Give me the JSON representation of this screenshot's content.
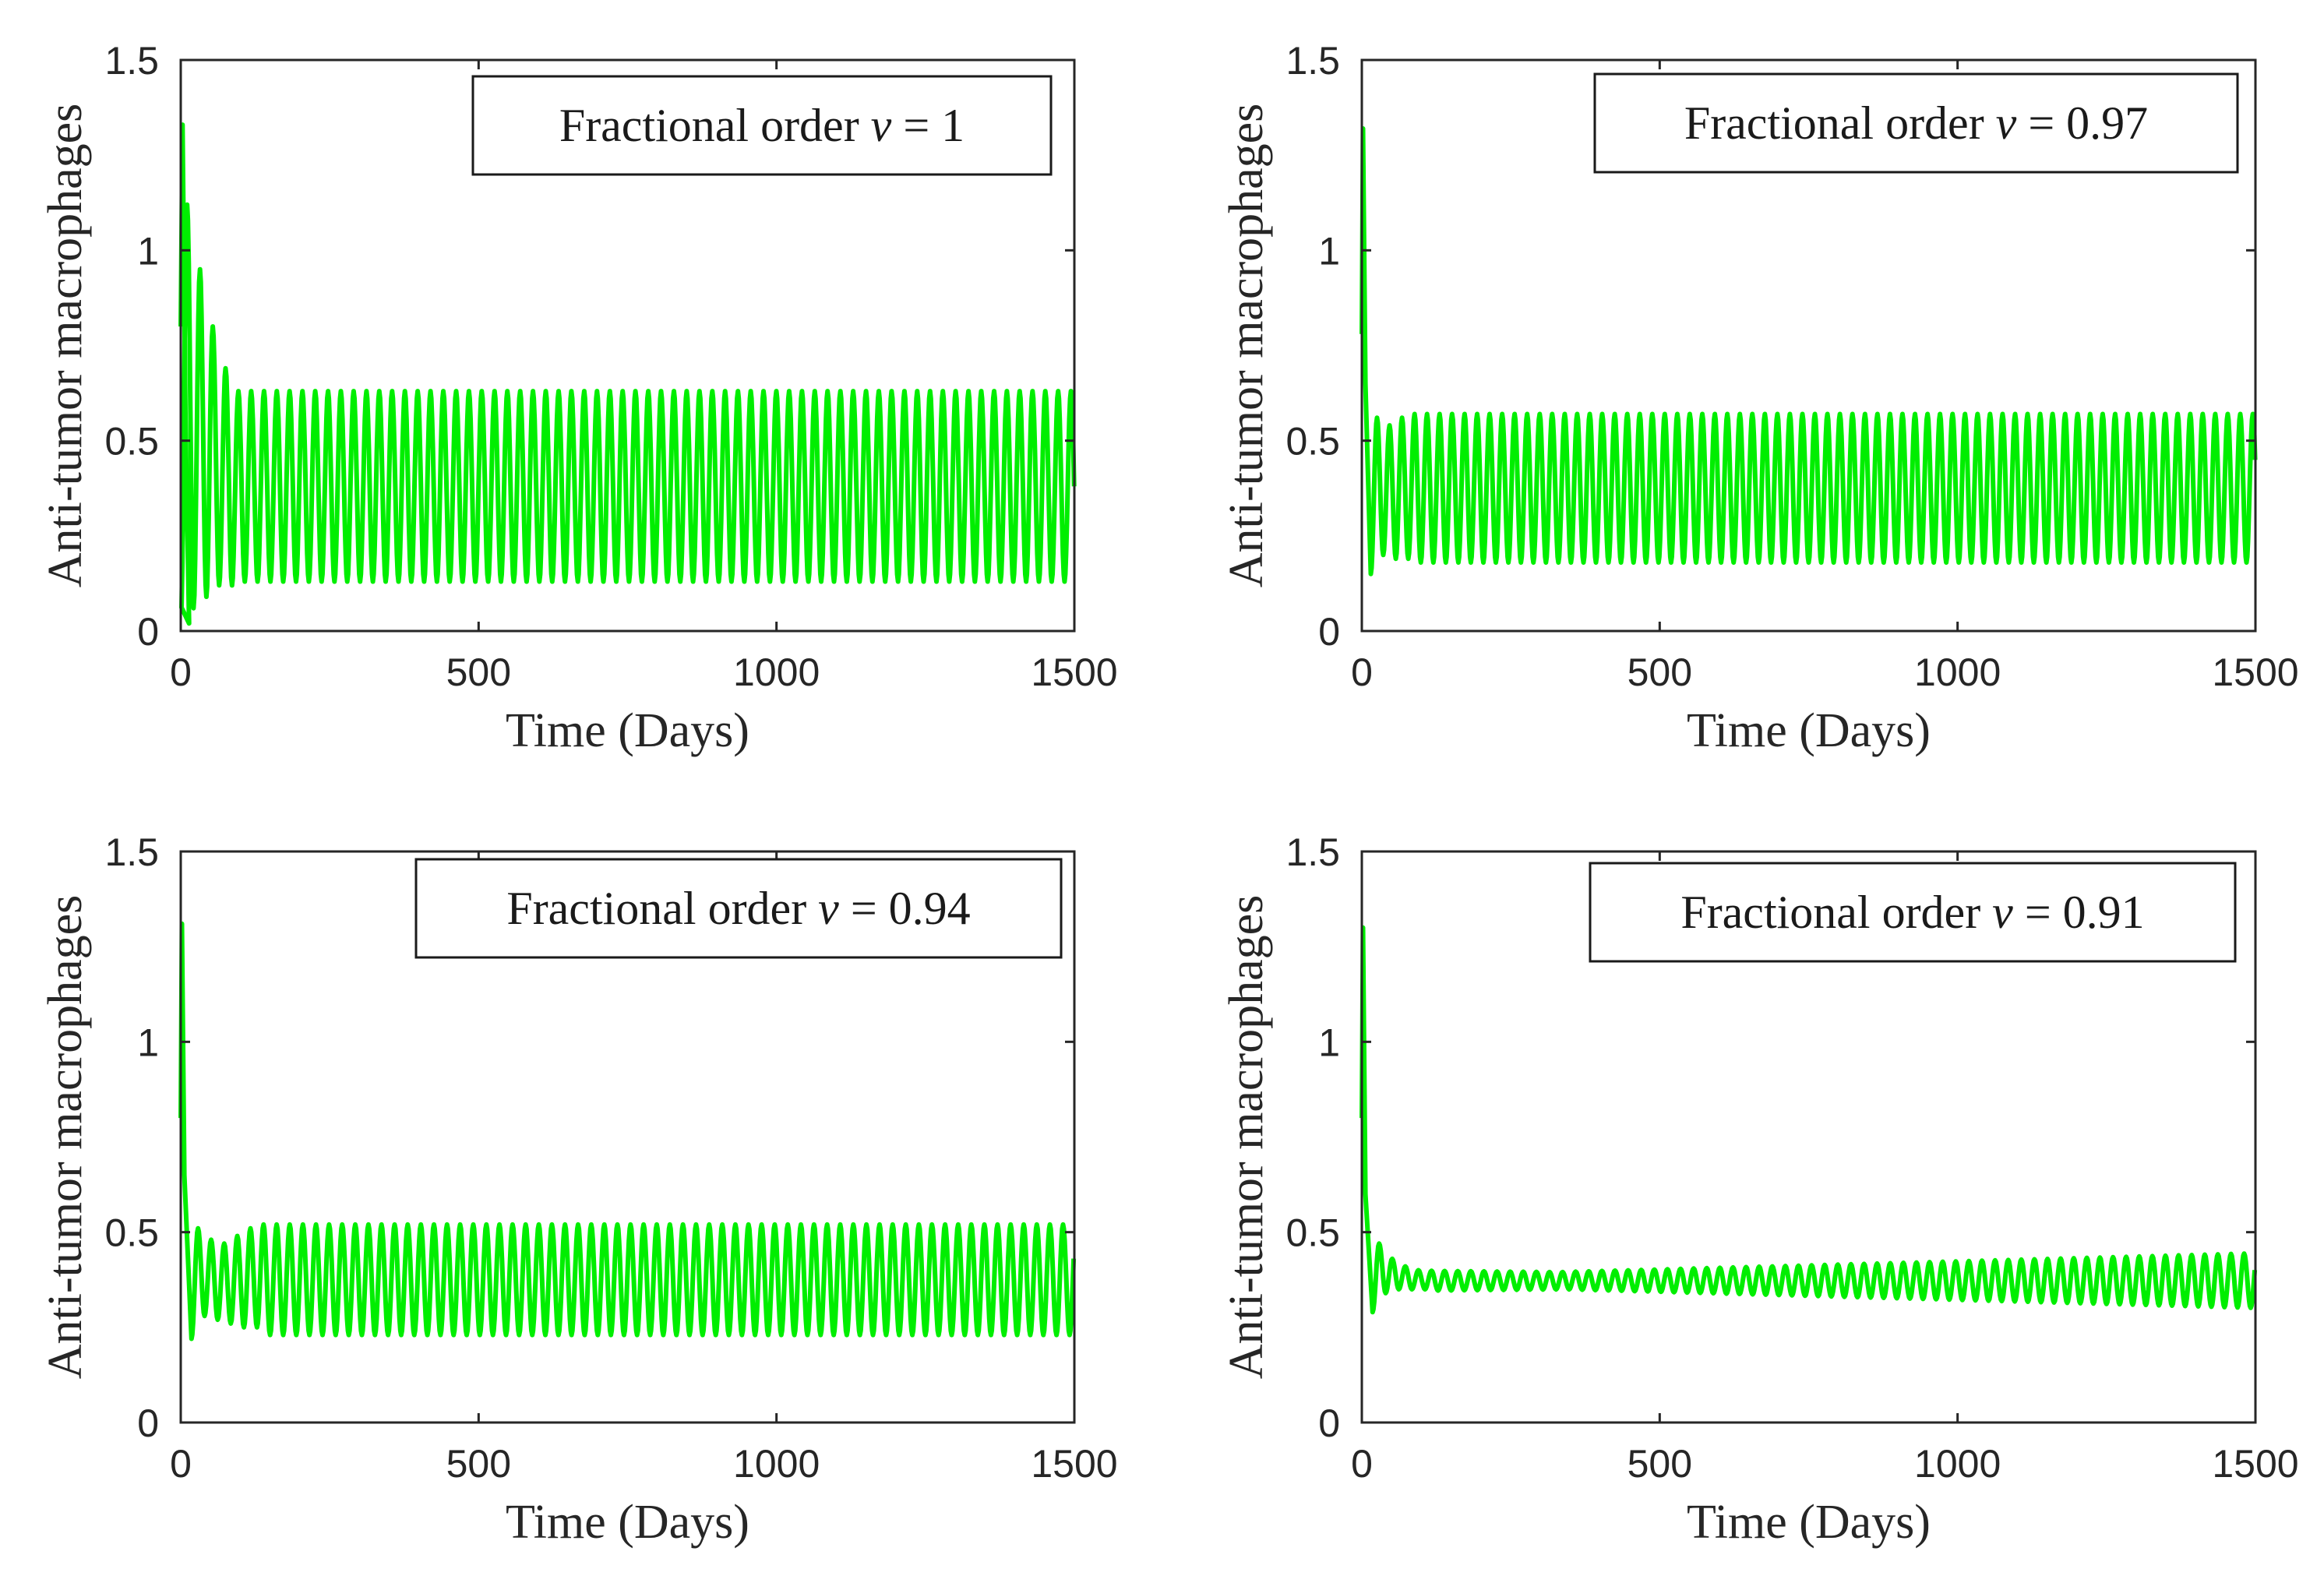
{
  "colors": {
    "series": "#00ee00",
    "axes": "#262626",
    "legend_border": "#1a1a1a"
  },
  "chart_data": [
    {
      "type": "line",
      "legend": {
        "prefix": "Fractional order",
        "variable": "v",
        "equals": " = ",
        "value": "1",
        "placement": "top-right"
      },
      "xlabel": "Time (Days)",
      "ylabel": "Anti-tumor macrophages",
      "xlim": [
        0,
        1500
      ],
      "ylim": [
        0,
        1.5
      ],
      "xticks": [
        0,
        500,
        1000,
        1500
      ],
      "xtick_labels": [
        "0",
        "500",
        "1000",
        "1500"
      ],
      "yticks": [
        0,
        0.5,
        1,
        1.5
      ],
      "ytick_labels": [
        "0",
        "0.5",
        "1",
        "1.5"
      ],
      "series": [
        {
          "name": "v = 1",
          "t0": 0,
          "period": 21.5,
          "initial": [
            [
              0,
              0.8
            ],
            [
              3,
              1.33
            ],
            [
              8,
              0.55
            ],
            [
              14,
              0.02
            ]
          ],
          "transient_maxima": [
            1.12,
            0.95,
            0.8,
            0.69
          ],
          "transient_minima": [
            0.04,
            0.06,
            0.09,
            0.12
          ],
          "steady_max": 0.63,
          "steady_min": 0.13
        }
      ]
    },
    {
      "type": "line",
      "legend": {
        "prefix": "Fractional order",
        "variable": "v",
        "equals": " = ",
        "value": "0.97",
        "placement": "top-right"
      },
      "xlabel": "Time (Days)",
      "ylabel": "Anti-tumor macrophages",
      "xlim": [
        0,
        1500
      ],
      "ylim": [
        0,
        1.5
      ],
      "xticks": [
        0,
        500,
        1000,
        1500
      ],
      "xtick_labels": [
        "0",
        "500",
        "1000",
        "1500"
      ],
      "yticks": [
        0,
        0.5,
        1,
        1.5
      ],
      "ytick_labels": [
        "0",
        "0.5",
        "1",
        "1.5"
      ],
      "series": [
        {
          "name": "v = 0.97",
          "t0": 15,
          "period": 21,
          "initial": [
            [
              0,
              0.78
            ],
            [
              2,
              1.32
            ],
            [
              6,
              0.65
            ],
            [
              15,
              0.15
            ]
          ],
          "transient_maxima": [
            0.56,
            0.54,
            0.56
          ],
          "transient_minima": [
            0.23,
            0.2,
            0.19
          ],
          "steady_max": 0.57,
          "steady_min": 0.18
        }
      ]
    },
    {
      "type": "line",
      "legend": {
        "prefix": "Fractional order",
        "variable": "v",
        "equals": " = ",
        "value": "0.94",
        "placement": "top-right"
      },
      "xlabel": "Time (Days)",
      "ylabel": "Anti-tumor macrophages",
      "xlim": [
        0,
        1500
      ],
      "ylim": [
        0,
        1.5
      ],
      "xticks": [
        0,
        500,
        1000,
        1500
      ],
      "xtick_labels": [
        "0",
        "500",
        "1000",
        "1500"
      ],
      "yticks": [
        0,
        0.5,
        1,
        1.5
      ],
      "ytick_labels": [
        "0",
        "0.5",
        "1",
        "1.5"
      ],
      "series": [
        {
          "name": "v = 0.94",
          "t0": 18,
          "period": 22,
          "initial": [
            [
              0,
              0.8
            ],
            [
              2,
              1.31
            ],
            [
              6,
              0.65
            ],
            [
              18,
              0.22
            ]
          ],
          "transient_maxima": [
            0.51,
            0.48,
            0.47,
            0.49,
            0.51
          ],
          "transient_minima": [
            0.27,
            0.28,
            0.27,
            0.26,
            0.25
          ],
          "steady_max": 0.52,
          "steady_min": 0.23
        }
      ]
    },
    {
      "type": "line",
      "legend": {
        "prefix": "Fractional order",
        "variable": "v",
        "equals": " = ",
        "value": "0.91",
        "placement": "top-right"
      },
      "xlabel": "Time (Days)",
      "ylabel": "Anti-tumor macrophages",
      "xlim": [
        0,
        1500
      ],
      "ylim": [
        0,
        1.5
      ],
      "xticks": [
        0,
        500,
        1000,
        1500
      ],
      "xtick_labels": [
        "0",
        "500",
        "1000",
        "1500"
      ],
      "yticks": [
        0,
        0.5,
        1,
        1.5
      ],
      "ytick_labels": [
        "0",
        "0.5",
        "1",
        "1.5"
      ],
      "series": [
        {
          "name": "v = 0.91",
          "t0": 18,
          "period": 22,
          "initial": [
            [
              0,
              0.8
            ],
            [
              2,
              1.3
            ],
            [
              6,
              0.6
            ],
            [
              18,
              0.29
            ]
          ],
          "transient_maxima": [
            0.47,
            0.43,
            0.41,
            0.4
          ],
          "transient_minima": [
            0.33,
            0.34,
            0.35,
            0.35
          ],
          "steady_max": 0.44,
          "steady_min": 0.3,
          "mid_amplitude": 0.02,
          "mid_time": 320
        }
      ]
    }
  ]
}
